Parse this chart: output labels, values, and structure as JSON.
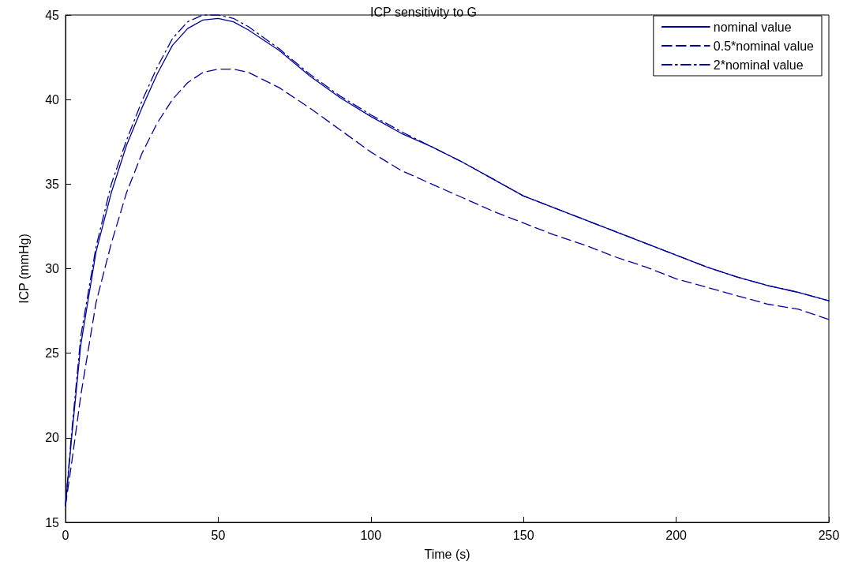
{
  "chart_data": {
    "type": "line",
    "title": "ICP sensitivity to G",
    "xlabel": "Time (s)",
    "ylabel": "ICP (mmHg)",
    "x": [
      0,
      2,
      5,
      10,
      15,
      20,
      25,
      30,
      35,
      40,
      45,
      50,
      55,
      60,
      70,
      80,
      90,
      100,
      110,
      120,
      130,
      140,
      150,
      160,
      170,
      180,
      190,
      200,
      210,
      220,
      230,
      240,
      250
    ],
    "series": [
      {
        "name": "nominal value",
        "color": "#00009c",
        "line_style": "solid",
        "values": [
          16,
          20,
          25.5,
          31,
          34.5,
          37.3,
          39.5,
          41.5,
          43.2,
          44.2,
          44.7,
          44.8,
          44.6,
          44.1,
          42.9,
          41.4,
          40.1,
          39,
          38,
          37.2,
          36.3,
          35.3,
          34.3,
          33.6,
          32.9,
          32.2,
          31.5,
          30.8,
          30.1,
          29.5,
          29,
          28.6,
          28.1
        ]
      },
      {
        "name": "0.5*nominal value",
        "color": "#00009c",
        "line_style": "dashed",
        "values": [
          16,
          18.5,
          22.5,
          28,
          31.5,
          34.5,
          36.8,
          38.6,
          40,
          41,
          41.6,
          41.8,
          41.8,
          41.6,
          40.7,
          39.5,
          38.2,
          36.9,
          35.8,
          35,
          34.2,
          33.4,
          32.7,
          32,
          31.4,
          30.7,
          30.1,
          29.4,
          28.9,
          28.4,
          27.9,
          27.6,
          27
        ]
      },
      {
        "name": "2*nominal value",
        "color": "#00009c",
        "line_style": "dashdot",
        "values": [
          16,
          20.3,
          26,
          31.3,
          35,
          37.6,
          39.9,
          41.9,
          43.6,
          44.6,
          45,
          45,
          44.8,
          44.3,
          43,
          41.5,
          40.2,
          39.1,
          38.1,
          37.2,
          36.3,
          35.3,
          34.3,
          33.6,
          32.9,
          32.2,
          31.5,
          30.8,
          30.1,
          29.5,
          29,
          28.6,
          28.1
        ]
      }
    ],
    "xlim": [
      0,
      250
    ],
    "xticks": [
      0,
      50,
      100,
      150,
      200,
      250
    ],
    "ylim": [
      15,
      45
    ],
    "yticks": [
      15,
      20,
      25,
      30,
      35,
      40,
      45
    ],
    "grid": false,
    "legend": "top right",
    "marker": "none"
  }
}
